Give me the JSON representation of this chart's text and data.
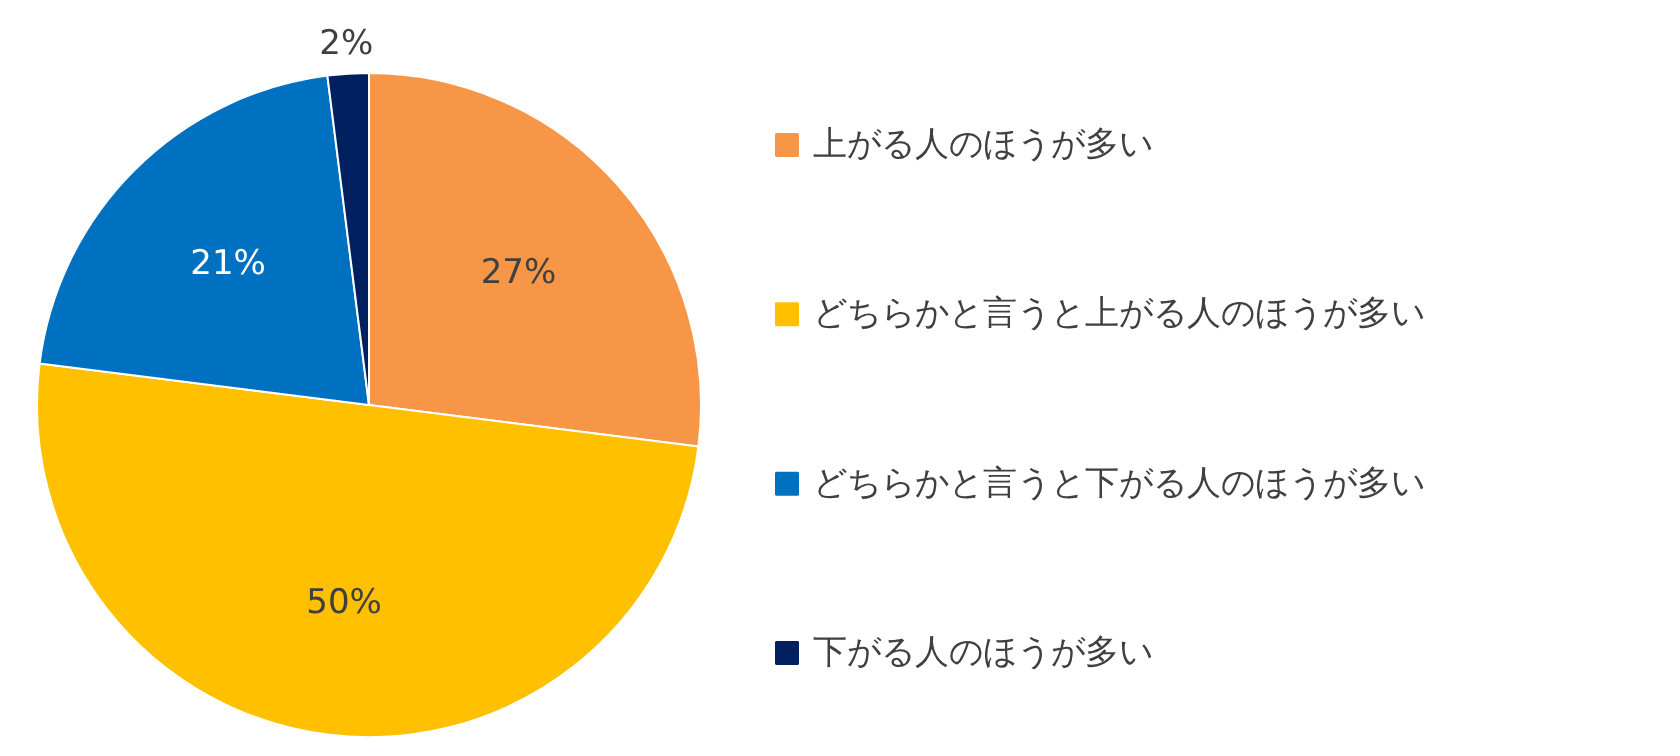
{
  "chart_data": {
    "type": "pie",
    "categories": [
      "上がる人のほうが多い",
      "どちらかと言うと上がる人のほうが多い",
      "どちらかと言うと下がる人のほうが多い",
      "下がる人のほうが多い"
    ],
    "values": [
      27,
      50,
      21,
      2
    ],
    "colors": [
      "#f79646",
      "#ffc000",
      "#0070c0",
      "#002060"
    ],
    "value_labels": [
      "27%",
      "50%",
      "21%",
      "2%"
    ],
    "legend": "right"
  }
}
